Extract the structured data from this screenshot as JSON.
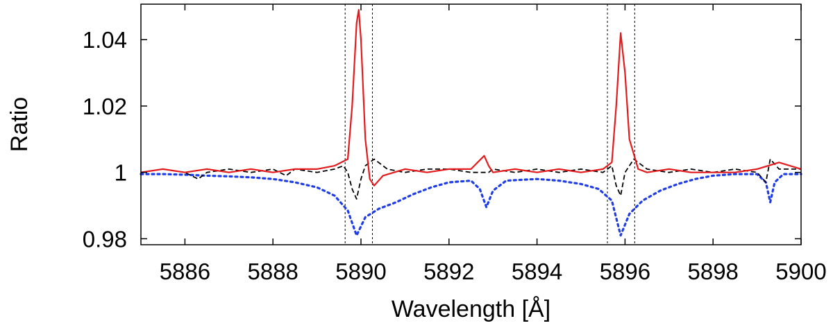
{
  "chart_data": {
    "type": "line",
    "xlabel": "Wavelength [Å]",
    "ylabel": "Ratio",
    "xlim": [
      5885,
      5900
    ],
    "ylim": [
      0.9782,
      1.0507
    ],
    "x_ticks": [
      5886,
      5888,
      5890,
      5892,
      5894,
      5896,
      5898,
      5900
    ],
    "x_tick_labels": [
      "5886",
      "5888",
      "5890",
      "5892",
      "5894",
      "5896",
      "5898",
      "5900"
    ],
    "y_ticks": [
      0.98,
      1.0,
      1.02,
      1.04
    ],
    "y_tick_labels": [
      "0.98",
      "1",
      "1.02",
      "1.04"
    ],
    "grid": false,
    "vertical_markers": [
      5889.64,
      5890.26,
      5895.6,
      5896.22
    ],
    "series": [
      {
        "style": "solid",
        "color": "#e41a1c",
        "x": [
          5885.0,
          5885.5,
          5886.0,
          5886.5,
          5887.0,
          5887.5,
          5888.0,
          5888.5,
          5889.0,
          5889.4,
          5889.7,
          5889.8,
          5889.9,
          5889.95,
          5890.0,
          5890.1,
          5890.2,
          5890.3,
          5890.5,
          5891.0,
          5891.5,
          5892.0,
          5892.5,
          5892.8,
          5892.9,
          5893.0,
          5893.5,
          5894.0,
          5894.5,
          5895.0,
          5895.5,
          5895.7,
          5895.8,
          5895.9,
          5896.0,
          5896.1,
          5896.3,
          5896.5,
          5897.0,
          5897.5,
          5898.0,
          5898.5,
          5899.0,
          5899.5,
          5900.0
        ],
        "y": [
          1.0,
          1.001,
          1.0,
          1.001,
          1.0,
          1.001,
          1.0,
          1.001,
          1.001,
          1.002,
          1.004,
          1.02,
          1.045,
          1.049,
          1.04,
          1.01,
          0.998,
          0.996,
          0.999,
          1.001,
          1.0,
          1.001,
          1.001,
          1.005,
          1.002,
          1.0,
          1.001,
          1.0,
          1.001,
          1.0,
          1.001,
          1.003,
          1.02,
          1.042,
          1.03,
          1.01,
          1.001,
          1.0,
          1.001,
          1.0,
          1.0,
          1.0,
          1.001,
          1.003,
          1.001
        ]
      },
      {
        "style": "dashed",
        "color": "#000000",
        "x": [
          5885.0,
          5885.5,
          5886.0,
          5886.3,
          5886.5,
          5887.0,
          5887.5,
          5888.0,
          5888.3,
          5888.5,
          5889.0,
          5889.4,
          5889.6,
          5889.7,
          5889.8,
          5889.9,
          5890.0,
          5890.1,
          5890.3,
          5890.6,
          5891.0,
          5891.5,
          5892.0,
          5892.5,
          5892.9,
          5893.0,
          5893.5,
          5894.0,
          5894.5,
          5895.0,
          5895.5,
          5895.7,
          5895.8,
          5895.9,
          5896.0,
          5896.2,
          5896.5,
          5897.0,
          5897.5,
          5898.0,
          5898.5,
          5899.0,
          5899.2,
          5899.3,
          5899.5,
          5900.0
        ],
        "y": [
          1.0,
          1.001,
          1.0,
          0.998,
          1.0,
          1.001,
          1.0,
          1.001,
          0.999,
          1.001,
          1.0,
          1.001,
          1.002,
          1.0,
          0.995,
          0.992,
          0.998,
          1.002,
          1.004,
          1.001,
          1.0,
          1.001,
          1.001,
          1.0,
          1.0,
          1.001,
          1.0,
          1.001,
          1.0,
          1.001,
          1.0,
          1.002,
          0.996,
          0.993,
          1.0,
          1.004,
          1.001,
          1.0,
          1.001,
          1.0,
          1.001,
          1.0,
          0.997,
          1.004,
          1.001,
          1.001
        ]
      },
      {
        "style": "dotted",
        "color": "#1f3de6",
        "x": [
          5885.0,
          5885.5,
          5886.0,
          5886.5,
          5887.0,
          5887.5,
          5888.0,
          5888.5,
          5889.0,
          5889.4,
          5889.7,
          5889.9,
          5890.1,
          5890.4,
          5890.8,
          5891.2,
          5891.6,
          5892.0,
          5892.5,
          5892.7,
          5892.85,
          5893.0,
          5893.3,
          5894.0,
          5894.5,
          5895.0,
          5895.4,
          5895.7,
          5895.9,
          5896.1,
          5896.4,
          5896.8,
          5897.2,
          5897.6,
          5898.0,
          5898.5,
          5899.0,
          5899.2,
          5899.3,
          5899.4,
          5899.6,
          5900.0
        ],
        "y": [
          0.9995,
          0.9995,
          0.9993,
          0.999,
          0.9988,
          0.9985,
          0.998,
          0.997,
          0.9955,
          0.993,
          0.9885,
          0.981,
          0.9865,
          0.989,
          0.991,
          0.9935,
          0.9955,
          0.997,
          0.9975,
          0.995,
          0.9895,
          0.9945,
          0.9975,
          0.998,
          0.9975,
          0.9965,
          0.995,
          0.9915,
          0.981,
          0.9875,
          0.9915,
          0.9945,
          0.9965,
          0.998,
          0.999,
          0.9995,
          0.9995,
          0.997,
          0.991,
          0.997,
          0.9995,
          0.9995
        ]
      }
    ]
  }
}
